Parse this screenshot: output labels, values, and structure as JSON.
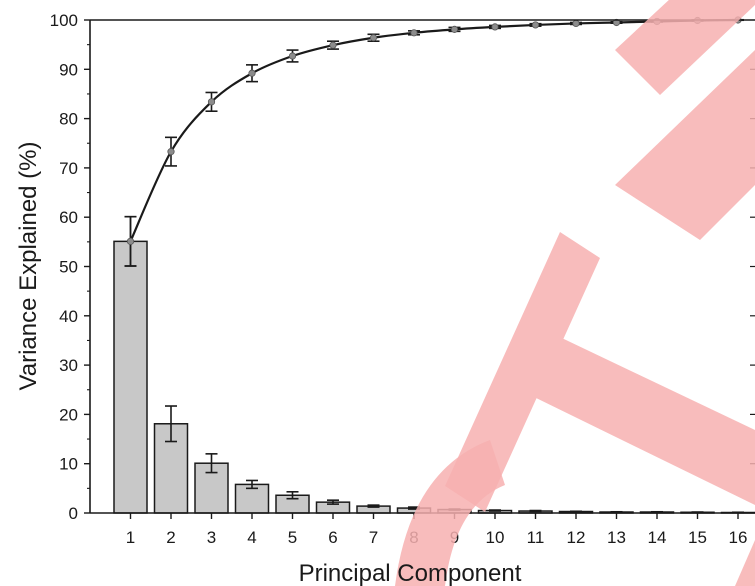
{
  "chart_data": {
    "type": "bar",
    "xlabel": "Principal Component",
    "ylabel": "Variance Explained (%)",
    "ylim": [
      0,
      100
    ],
    "yticks": [
      0,
      10,
      20,
      30,
      40,
      50,
      60,
      70,
      80,
      90,
      100
    ],
    "categories": [
      "1",
      "2",
      "3",
      "4",
      "5",
      "6",
      "7",
      "8",
      "9",
      "10",
      "11",
      "12",
      "13",
      "14",
      "15",
      "16"
    ],
    "series": [
      {
        "type": "bar",
        "values": [
          55.1,
          18.1,
          10.1,
          5.8,
          3.6,
          2.2,
          1.4,
          1.0,
          0.7,
          0.5,
          0.4,
          0.3,
          0.2,
          0.2,
          0.15,
          0.1
        ],
        "errors": [
          5.0,
          3.6,
          1.9,
          0.8,
          0.7,
          0.4,
          0.2,
          0.2,
          0.1,
          0.1,
          0.1,
          0.05,
          0.05,
          0.05,
          0.05,
          0.05
        ],
        "color": "#c8c8c8"
      },
      {
        "type": "line",
        "values": [
          55.1,
          73.3,
          83.4,
          89.2,
          92.7,
          94.9,
          96.4,
          97.4,
          98.1,
          98.6,
          99.0,
          99.3,
          99.5,
          99.7,
          99.9,
          100.0
        ],
        "errors": [
          5.0,
          2.9,
          1.9,
          1.7,
          1.2,
          0.8,
          0.7,
          0.4,
          0.4,
          0.3,
          0.25,
          0.2,
          0.15,
          0.1,
          0.1,
          0.05
        ],
        "color": "#1a1a1a",
        "marker_color": "#8c8c8c"
      }
    ],
    "grid": false,
    "legend": "none"
  },
  "watermark": {
    "color": "#f7b0b0"
  }
}
